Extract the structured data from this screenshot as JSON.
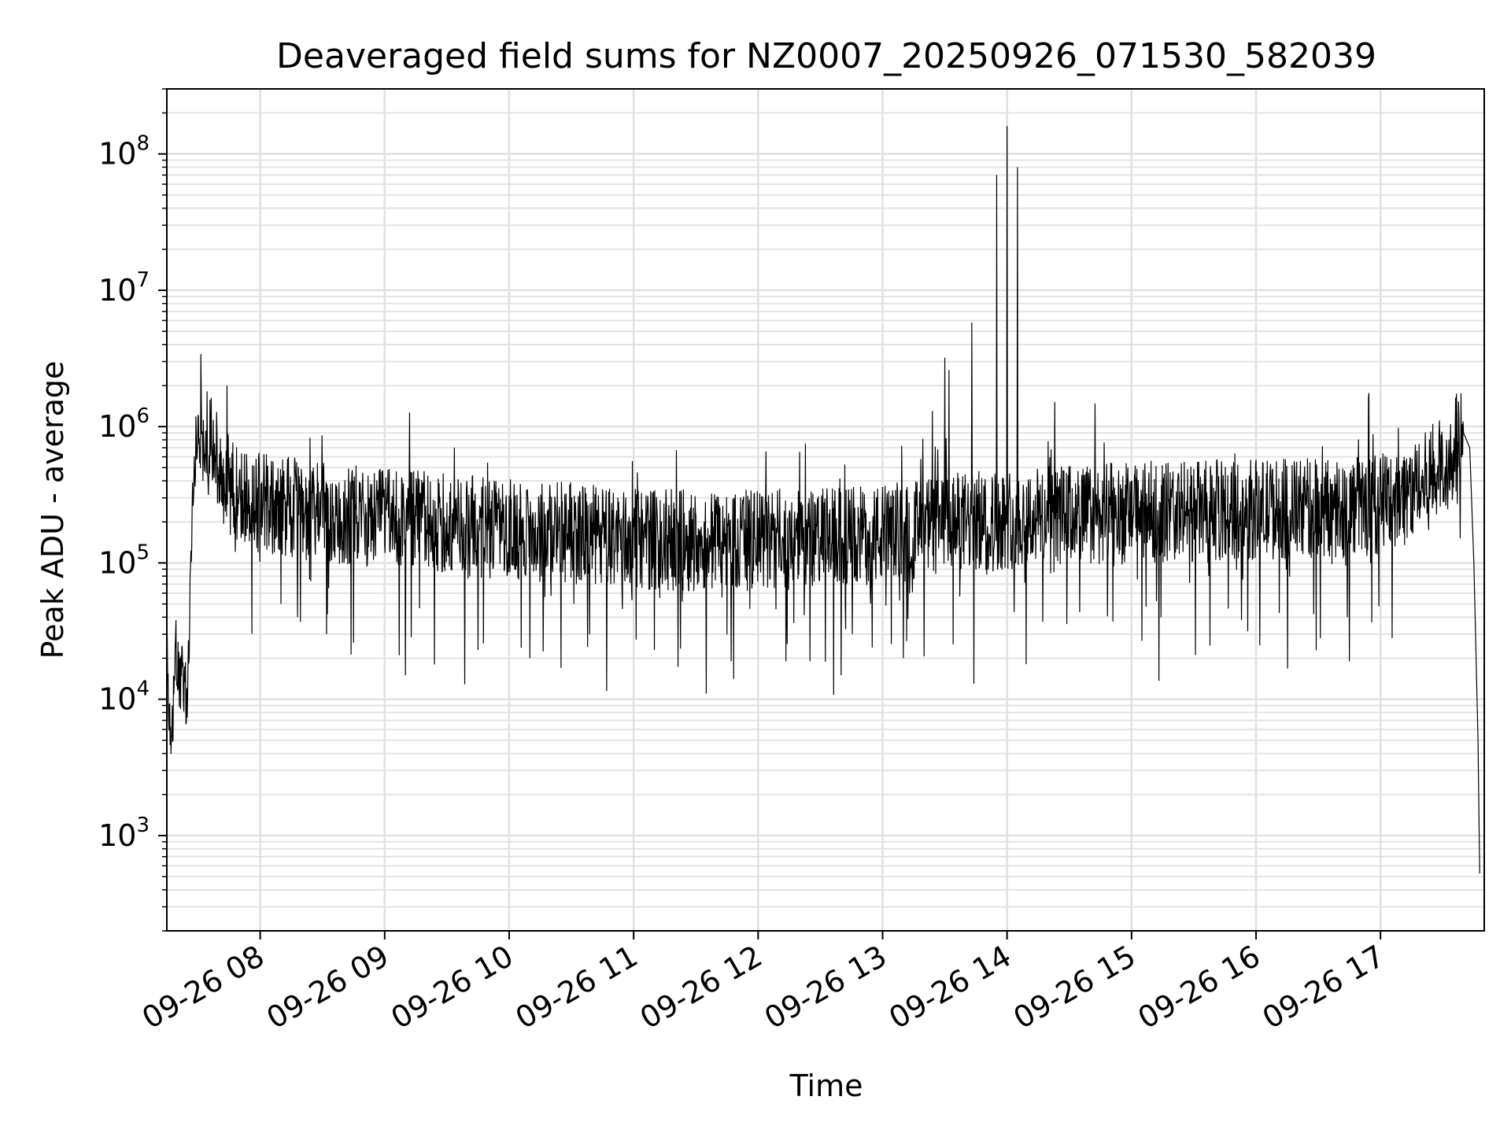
{
  "chart_data": {
    "type": "line",
    "title": "Deaveraged field sums for NZ0007_20250926_071530_582039",
    "xlabel": "Time",
    "ylabel": "Peak ADU - average",
    "yscale": "log",
    "ylim": [
      200,
      300000000
    ],
    "xlim": [
      "09-26 07:15",
      "09-26 17:50"
    ],
    "grid": true,
    "line_color": "#000000",
    "x_ticks": [
      "09-26 08",
      "09-26 09",
      "09-26 10",
      "09-26 11",
      "09-26 12",
      "09-26 13",
      "09-26 14",
      "09-26 15",
      "09-26 16",
      "09-26 17"
    ],
    "y_ticks": [
      {
        "base": "10",
        "exp": "3",
        "value": 1000
      },
      {
        "base": "10",
        "exp": "4",
        "value": 10000
      },
      {
        "base": "10",
        "exp": "5",
        "value": 100000
      },
      {
        "base": "10",
        "exp": "6",
        "value": 1000000
      },
      {
        "base": "10",
        "exp": "7",
        "value": 10000000
      },
      {
        "base": "10",
        "exp": "8",
        "value": 100000000
      }
    ],
    "series": [
      {
        "x": [
          "09-26 07:15",
          "09-26 07:17",
          "09-26 07:19",
          "09-26 07:21",
          "09-26 07:23",
          "09-26 07:25",
          "09-26 07:27",
          "09-26 07:29",
          "09-26 07:30",
          "09-26 07:32",
          "09-26 07:35",
          "09-26 07:38",
          "09-26 07:41",
          "09-26 07:45",
          "09-26 07:50",
          "09-26 07:55",
          "09-26 08:00",
          "09-26 08:10",
          "09-26 08:20",
          "09-26 08:30",
          "09-26 08:45",
          "09-26 09:00",
          "09-26 09:15",
          "09-26 09:30",
          "09-26 09:45",
          "09-26 10:00",
          "09-26 10:15",
          "09-26 10:30",
          "09-26 10:45",
          "09-26 11:00",
          "09-26 11:15",
          "09-26 11:30",
          "09-26 11:45",
          "09-26 12:00",
          "09-26 12:15",
          "09-26 12:30",
          "09-26 12:45",
          "09-26 13:00",
          "09-26 13:15",
          "09-26 13:30",
          "09-26 13:45",
          "09-26 14:00",
          "09-26 14:15",
          "09-26 14:30",
          "09-26 14:45",
          "09-26 15:00",
          "09-26 15:15",
          "09-26 15:30",
          "09-26 15:45",
          "09-26 16:00",
          "09-26 16:15",
          "09-26 16:30",
          "09-26 16:45",
          "09-26 17:00",
          "09-26 17:10",
          "09-26 17:20",
          "09-26 17:30",
          "09-26 17:36",
          "09-26 17:40",
          "09-26 17:43",
          "09-26 17:45",
          "09-26 17:47",
          "09-26 17:48"
        ],
        "y": [
          20000,
          3000,
          25000,
          12000,
          15000,
          9000,
          200000,
          700000,
          900000,
          1000000,
          800000,
          700000,
          500000,
          400000,
          350000,
          320000,
          300000,
          280000,
          270000,
          250000,
          240000,
          230000,
          220000,
          210000,
          200000,
          190000,
          185000,
          180000,
          170000,
          165000,
          160000,
          160000,
          158000,
          160000,
          162000,
          165000,
          170000,
          175000,
          190000,
          210000,
          220000,
          230000,
          240000,
          245000,
          250000,
          255000,
          260000,
          262000,
          265000,
          268000,
          270000,
          275000,
          280000,
          300000,
          340000,
          400000,
          550000,
          800000,
          900000,
          700000,
          100000,
          5000,
          300
        ]
      }
    ],
    "spikes": [
      {
        "x": "09-26 07:44",
        "y": 2000000
      },
      {
        "x": "09-26 13:24",
        "y": 1300000
      },
      {
        "x": "09-26 13:30",
        "y": 3200000
      },
      {
        "x": "09-26 13:32",
        "y": 2600000
      },
      {
        "x": "09-26 13:43",
        "y": 5800000
      },
      {
        "x": "09-26 13:55",
        "y": 70000000
      },
      {
        "x": "09-26 14:00",
        "y": 160000000
      },
      {
        "x": "09-26 14:05",
        "y": 80000000
      }
    ],
    "dips": [
      {
        "x": "09-26 08:10",
        "y": 50000
      },
      {
        "x": "09-26 08:18",
        "y": 40000
      },
      {
        "x": "09-26 08:32",
        "y": 30000
      },
      {
        "x": "09-26 08:45",
        "y": 26000
      },
      {
        "x": "09-26 09:07",
        "y": 21000
      },
      {
        "x": "09-26 09:10",
        "y": 15000
      },
      {
        "x": "09-26 09:24",
        "y": 18000
      },
      {
        "x": "09-26 09:45",
        "y": 23000
      },
      {
        "x": "09-26 10:10",
        "y": 20000
      },
      {
        "x": "09-26 10:25",
        "y": 17000
      },
      {
        "x": "09-26 10:47",
        "y": 11500
      },
      {
        "x": "09-26 11:10",
        "y": 23000
      },
      {
        "x": "09-26 11:35",
        "y": 11000
      },
      {
        "x": "09-26 11:47",
        "y": 19000
      },
      {
        "x": "09-26 12:25",
        "y": 19000
      },
      {
        "x": "09-26 12:40",
        "y": 15000
      },
      {
        "x": "09-26 12:55",
        "y": 24000
      },
      {
        "x": "09-26 13:10",
        "y": 20000
      },
      {
        "x": "09-26 13:44",
        "y": 13000
      },
      {
        "x": "09-26 14:00",
        "y": 29000
      },
      {
        "x": "09-26 16:31",
        "y": 28000
      },
      {
        "x": "09-26 16:45",
        "y": 19000
      }
    ]
  }
}
